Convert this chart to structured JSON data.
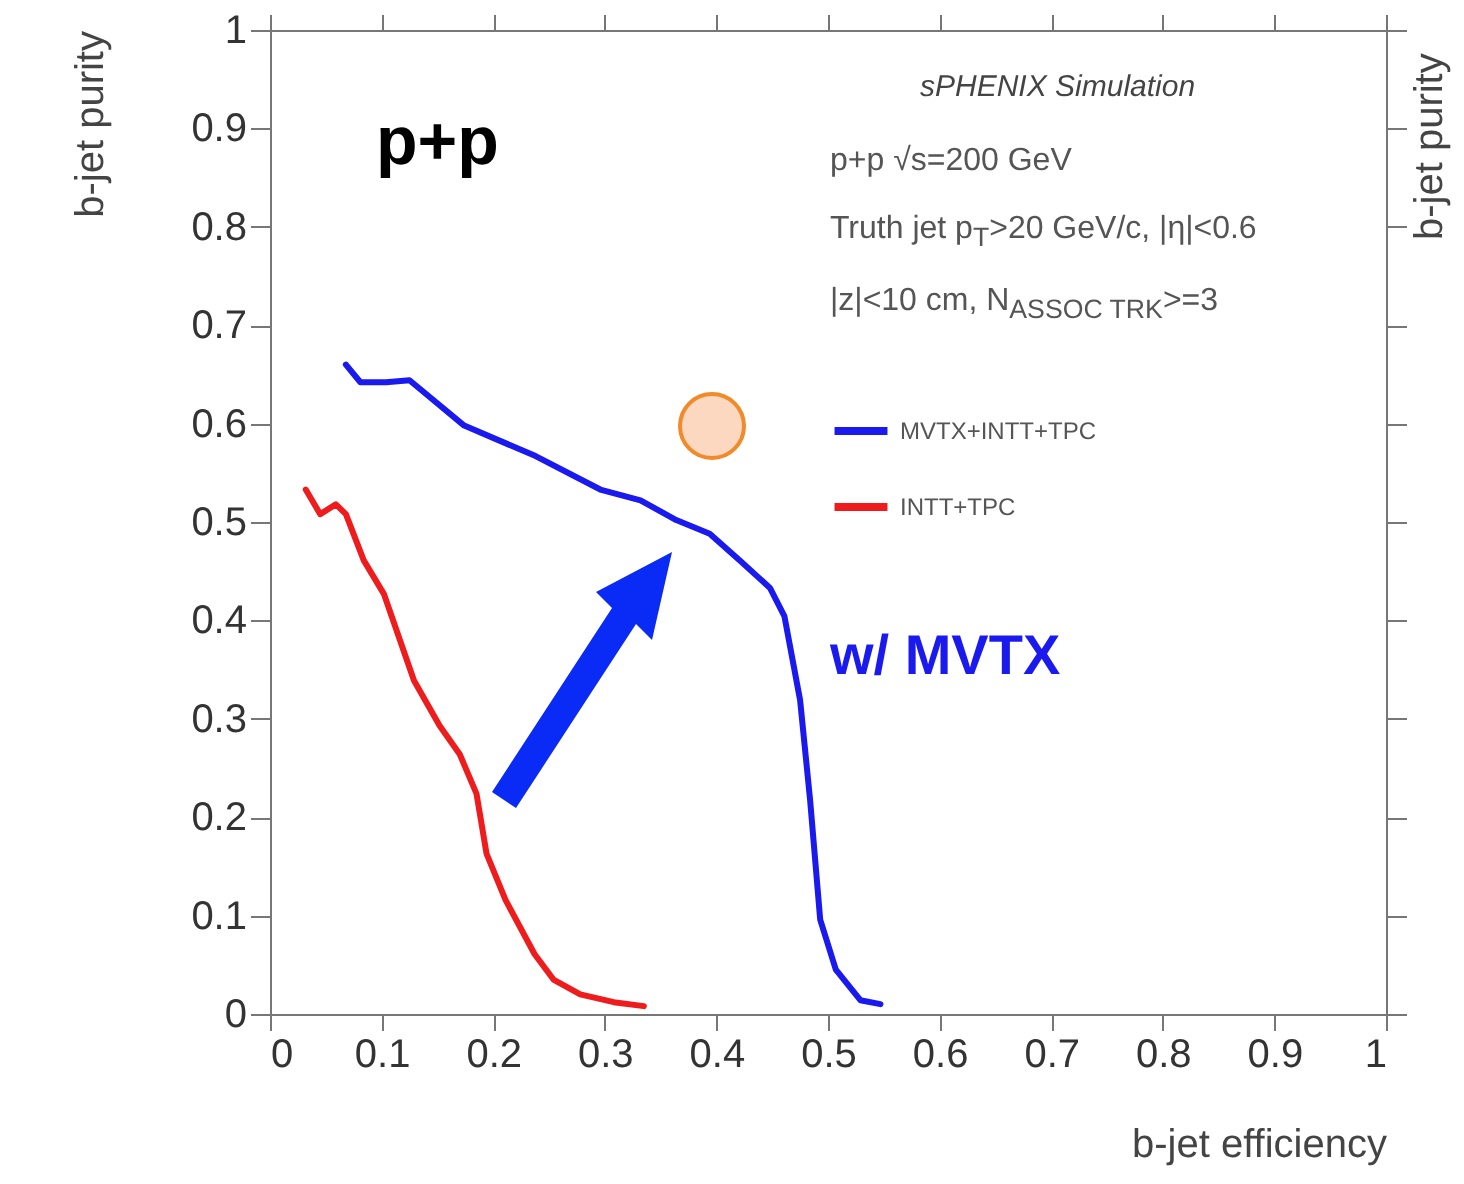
{
  "chart_data": {
    "type": "line",
    "xlabel": "b-jet efficiency",
    "ylabel": "b-jet purity",
    "y2label": "b-jet purity",
    "xlim": [
      0,
      1
    ],
    "ylim": [
      0,
      1
    ],
    "xticks": [
      0,
      0.1,
      0.2,
      0.3,
      0.4,
      0.5,
      0.6,
      0.7,
      0.8,
      0.9,
      1
    ],
    "yticks": [
      0,
      0.1,
      0.2,
      0.3,
      0.4,
      0.5,
      0.6,
      0.7,
      0.8,
      0.9,
      1
    ],
    "legend": "top right",
    "grid": false,
    "annotations": [
      "sPHENIX Simulation",
      "p+p √s=200 GeV",
      "Truth jet p$_{T}$>20 GeV/c, |η|<0.6",
      "|z|<10 cm, N$_{ASSOC TRK}$>=3",
      "p+p",
      "w/ MVTX"
    ],
    "series": [
      {
        "name": "MVTX+INTT+TPC",
        "color": "#1a1aee",
        "x": [
          0.068,
          0.081,
          0.104,
          0.125,
          0.174,
          0.238,
          0.296,
          0.332,
          0.364,
          0.394,
          0.421,
          0.448,
          0.461,
          0.475,
          0.484,
          0.493,
          0.507,
          0.529,
          0.547
        ],
        "values": [
          0.66,
          0.642,
          0.642,
          0.644,
          0.598,
          0.567,
          0.533,
          0.522,
          0.502,
          0.488,
          0.461,
          0.433,
          0.404,
          0.319,
          0.217,
          0.096,
          0.045,
          0.014,
          0.01
        ]
      },
      {
        "name": "INTT+TPC",
        "color": "#ee1c1c",
        "x": [
          0.032,
          0.045,
          0.059,
          0.068,
          0.084,
          0.102,
          0.129,
          0.152,
          0.17,
          0.185,
          0.194,
          0.211,
          0.237,
          0.254,
          0.278,
          0.308,
          0.335
        ],
        "values": [
          0.533,
          0.508,
          0.518,
          0.508,
          0.461,
          0.427,
          0.339,
          0.293,
          0.264,
          0.224,
          0.163,
          0.116,
          0.061,
          0.035,
          0.02,
          0.012,
          0.008
        ]
      }
    ]
  }
}
